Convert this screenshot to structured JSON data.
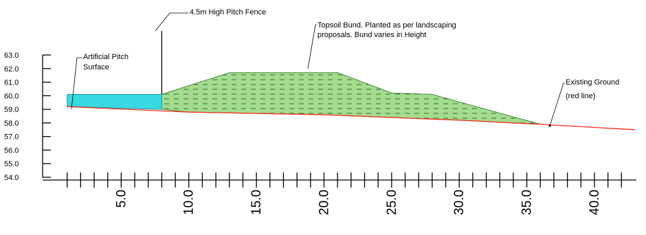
{
  "chart_data": {
    "type": "cross-section",
    "x_ticks": [
      "5.0",
      "10.0",
      "15.0",
      "20.0",
      "25.0",
      "30.0",
      "35.0",
      "40.0"
    ],
    "x_tick_values": [
      5,
      10,
      15,
      20,
      25,
      30,
      35,
      40
    ],
    "x_minor_step": 1,
    "xlim": [
      0,
      43
    ],
    "y_ticks": [
      "54.0",
      "55.0",
      "56.0",
      "57.0",
      "58.0",
      "59.0",
      "60.0",
      "61.0",
      "62.0",
      "63.0"
    ],
    "y_tick_values": [
      54,
      55,
      56,
      57,
      58,
      59,
      60,
      61,
      62,
      63
    ],
    "ylim": [
      54,
      63
    ],
    "existing_ground": [
      [
        1,
        59.2
      ],
      [
        10,
        58.8
      ],
      [
        20,
        58.6
      ],
      [
        30,
        58.2
      ],
      [
        36,
        57.9
      ],
      [
        43,
        57.5
      ]
    ],
    "pitch_surface": [
      [
        1,
        60.1
      ],
      [
        8,
        60.1
      ],
      [
        8,
        59.0
      ],
      [
        1,
        59.2
      ]
    ],
    "bund": [
      [
        8,
        60.1
      ],
      [
        13,
        61.7
      ],
      [
        21,
        61.7
      ],
      [
        25,
        60.2
      ],
      [
        28,
        60.1
      ],
      [
        36,
        57.9
      ],
      [
        30,
        58.2
      ],
      [
        20,
        58.6
      ],
      [
        10,
        58.8
      ],
      [
        8,
        59.0
      ]
    ],
    "fence": {
      "x": 8,
      "y_base": 60.1,
      "y_top": 64.5
    },
    "colors": {
      "ground_line": "#ff2a1a",
      "pitch_fill": "#39d9e1",
      "pitch_stroke": "#1e9aa3",
      "bund_fill": "#a3dc8f",
      "bund_stroke": "#3f8c37",
      "axis": "#000000"
    },
    "annotations": [
      {
        "id": "pitch",
        "lines": [
          "Artificial Pitch",
          "Surface"
        ]
      },
      {
        "id": "fence",
        "lines": [
          "4.5m High Pitch Fence"
        ]
      },
      {
        "id": "bund",
        "lines": [
          "Topsoil Bund. Planted as per landscaping",
          "proposals. Bund varies in Height"
        ]
      },
      {
        "id": "ground",
        "lines": [
          "Existing Ground",
          "(red line)"
        ]
      }
    ]
  }
}
